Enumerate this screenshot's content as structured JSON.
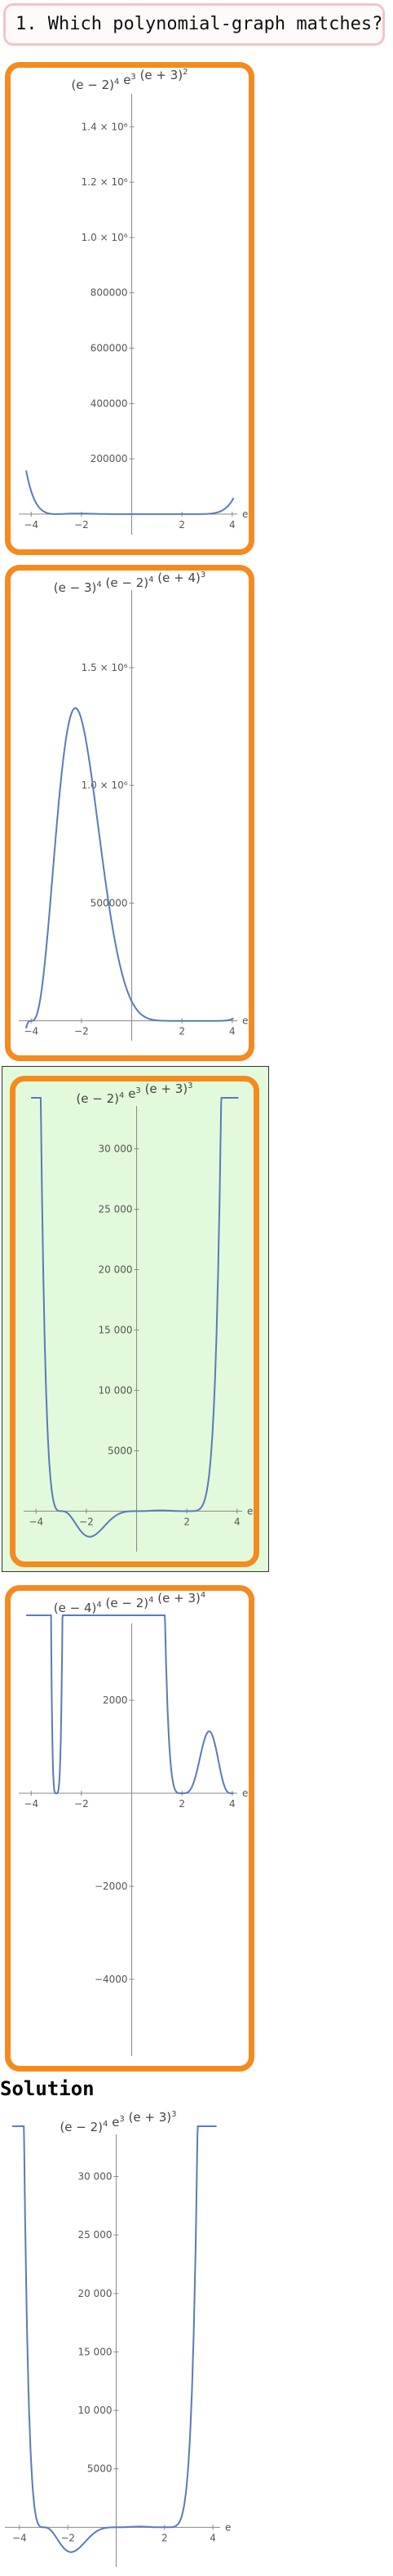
{
  "question": {
    "text": "1. Which polynomial-graph matches?"
  },
  "solution_label": "Solution",
  "options": [
    {
      "title": [
        [
          "(e − 2)",
          "4"
        ],
        [
          " e",
          "3"
        ],
        [
          " (e + 3)",
          "2"
        ]
      ],
      "correct": false,
      "yticks": [
        [
          200000,
          "200000"
        ],
        [
          400000,
          "400000"
        ],
        [
          600000,
          "600000"
        ],
        [
          800000,
          "800000"
        ],
        [
          1000000,
          "1.0 × 10⁶"
        ],
        [
          1200000,
          "1.2 × 10⁶"
        ],
        [
          1400000,
          "1.4 × 10⁶"
        ]
      ],
      "xticks": [
        [
          -4,
          "−4"
        ],
        [
          -2,
          "−2"
        ],
        [
          2,
          "2"
        ],
        [
          4,
          "4"
        ]
      ],
      "axis_label": "e"
    },
    {
      "title": [
        [
          "(e − 3)",
          "4"
        ],
        [
          " (e − 2)",
          "4"
        ],
        [
          " (e + 4)",
          "3"
        ]
      ],
      "correct": false,
      "yticks": [
        [
          500000,
          "500000"
        ],
        [
          1000000,
          "1.0 × 10⁶"
        ],
        [
          1500000,
          "1.5 × 10⁶"
        ]
      ],
      "xticks": [
        [
          -4,
          "−4"
        ],
        [
          -2,
          "−2"
        ],
        [
          2,
          "2"
        ],
        [
          4,
          "4"
        ]
      ],
      "axis_label": "e"
    },
    {
      "title": [
        [
          "(e − 2)",
          "4"
        ],
        [
          " e",
          "3"
        ],
        [
          " (e + 3)",
          "3"
        ]
      ],
      "correct": true,
      "yticks": [
        [
          5000,
          "5000"
        ],
        [
          10000,
          "10 000"
        ],
        [
          15000,
          "15 000"
        ],
        [
          20000,
          "20 000"
        ],
        [
          25000,
          "25 000"
        ],
        [
          30000,
          "30 000"
        ]
      ],
      "xticks": [
        [
          -4,
          "−4"
        ],
        [
          -2,
          "−2"
        ],
        [
          2,
          "2"
        ],
        [
          4,
          "4"
        ]
      ],
      "axis_label": "e"
    },
    {
      "title": [
        [
          "(e − 4)",
          "4"
        ],
        [
          " (e − 2)",
          "4"
        ],
        [
          " (e + 3)",
          "4"
        ]
      ],
      "correct": false,
      "yticks": [
        [
          2000,
          "2000"
        ],
        [
          -2000,
          "−2000"
        ],
        [
          -4000,
          "−4000"
        ]
      ],
      "xticks": [
        [
          -4,
          "−4"
        ],
        [
          -2,
          "−2"
        ],
        [
          2,
          "2"
        ],
        [
          4,
          "4"
        ]
      ],
      "axis_label": "e"
    }
  ],
  "solution": {
    "title": [
      [
        "(e − 2)",
        "4"
      ],
      [
        " e",
        "3"
      ],
      [
        " (e + 3)",
        "3"
      ]
    ],
    "yticks": [
      [
        5000,
        "5000"
      ],
      [
        10000,
        "10 000"
      ],
      [
        15000,
        "15 000"
      ],
      [
        20000,
        "20 000"
      ],
      [
        25000,
        "25 000"
      ],
      [
        30000,
        "30 000"
      ]
    ],
    "xticks": [
      [
        -4,
        "−4"
      ],
      [
        -2,
        "−2"
      ],
      [
        2,
        "2"
      ],
      [
        4,
        "4"
      ]
    ],
    "axis_label": "e"
  },
  "colors": {
    "frame": "#f58a1f",
    "correct_fill": "#e2fadb",
    "curve": "#5a7bb8"
  }
}
